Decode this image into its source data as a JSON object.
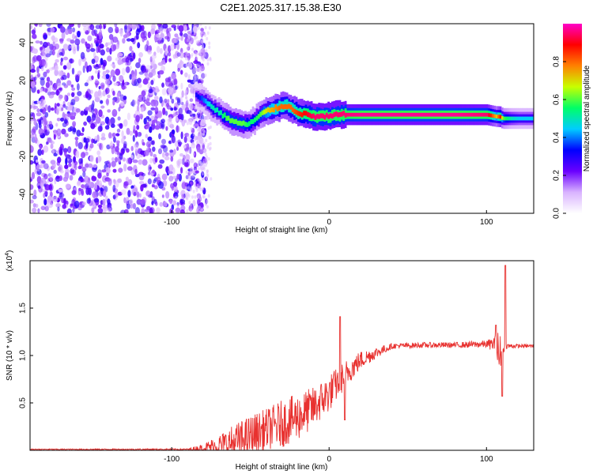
{
  "title": "C2E1.2025.317.15.38.E30",
  "chart_data": [
    {
      "type": "heatmap",
      "title": "C2E1.2025.317.15.38.E30",
      "xlabel": "Height of straight line (km)",
      "ylabel": "Frequency (Hz)",
      "xlim": [
        -190,
        130
      ],
      "ylim": [
        -50,
        50
      ],
      "xticks": [
        -100,
        0,
        100
      ],
      "yticks": [
        -40,
        -20,
        0,
        20,
        40
      ],
      "noise_region_x": [
        -190,
        -83
      ],
      "ridge": {
        "x": [
          -85,
          -80,
          -75,
          -70,
          -65,
          -60,
          -55,
          -52,
          -48,
          -44,
          -40,
          -36,
          -32,
          -28,
          -24,
          -20,
          -15,
          -10,
          -5,
          0,
          5,
          8,
          20,
          40,
          60,
          80,
          100,
          106,
          108,
          110,
          115,
          120,
          130
        ],
        "freq": [
          12,
          10,
          6,
          3,
          0,
          -2,
          -3,
          -3,
          -1,
          2,
          4,
          5,
          6,
          7,
          5,
          3,
          2,
          1,
          1,
          1,
          2,
          2,
          2,
          2,
          2,
          2,
          2,
          1,
          1,
          0,
          0,
          0,
          0
        ],
        "amplitude": [
          0.3,
          0.4,
          0.5,
          0.5,
          0.6,
          0.6,
          0.6,
          0.55,
          0.55,
          0.6,
          0.7,
          0.75,
          0.8,
          0.8,
          0.8,
          0.85,
          0.9,
          0.95,
          0.95,
          0.95,
          0.95,
          0.95,
          0.97,
          0.97,
          0.97,
          0.97,
          0.95,
          0.7,
          0.9,
          0.6,
          0.5,
          0.45,
          0.45
        ]
      },
      "colorbar": {
        "label": "Normalized spectral amplitude",
        "range": [
          0,
          1
        ],
        "ticks": [
          "0.0",
          "0.2",
          "0.4",
          "0.6",
          "0.8"
        ],
        "colors": [
          "#ffffff",
          "#d9b3ff",
          "#6a00ff",
          "#0000ff",
          "#00ccff",
          "#00ff66",
          "#c8ff00",
          "#ff8000",
          "#ff0000",
          "#ff00c8"
        ]
      }
    },
    {
      "type": "line",
      "xlabel": "Height of straight line (km)",
      "ylabel": "SNR (10 * v/v)",
      "scale_label": "(x10",
      "scale_exp": "4",
      "xlim": [
        -190,
        130
      ],
      "ylim": [
        0,
        2
      ],
      "xticks": [
        -100,
        0,
        100
      ],
      "yticks": [
        "0.5",
        "1.0",
        "1.5"
      ],
      "yunit": "x10^4",
      "color": "#e8312f",
      "envelope": {
        "x": [
          -190,
          -90,
          -80,
          -70,
          -60,
          -50,
          -40,
          -30,
          -20,
          -10,
          0,
          10,
          20,
          30,
          40,
          60,
          80,
          100,
          105,
          108,
          110,
          112,
          120,
          130
        ],
        "base": [
          0.01,
          0.01,
          0.02,
          0.05,
          0.08,
          0.15,
          0.22,
          0.28,
          0.35,
          0.45,
          0.6,
          0.8,
          0.95,
          1.03,
          1.1,
          1.11,
          1.11,
          1.12,
          1.12,
          1.0,
          1.05,
          1.1,
          1.1,
          1.1
        ],
        "noise": [
          0.005,
          0.008,
          0.05,
          0.12,
          0.2,
          0.22,
          0.22,
          0.25,
          0.25,
          0.22,
          0.2,
          0.15,
          0.1,
          0.06,
          0.03,
          0.03,
          0.03,
          0.04,
          0.08,
          0.3,
          0.05,
          0.03,
          0.02,
          0.02
        ]
      },
      "spikes": [
        {
          "x": 7,
          "y": 1.41
        },
        {
          "x": 10,
          "y": 0.32
        },
        {
          "x": 106,
          "y": 1.32
        },
        {
          "x": 110,
          "y": 0.57
        },
        {
          "x": 112,
          "y": 1.95
        }
      ]
    }
  ]
}
